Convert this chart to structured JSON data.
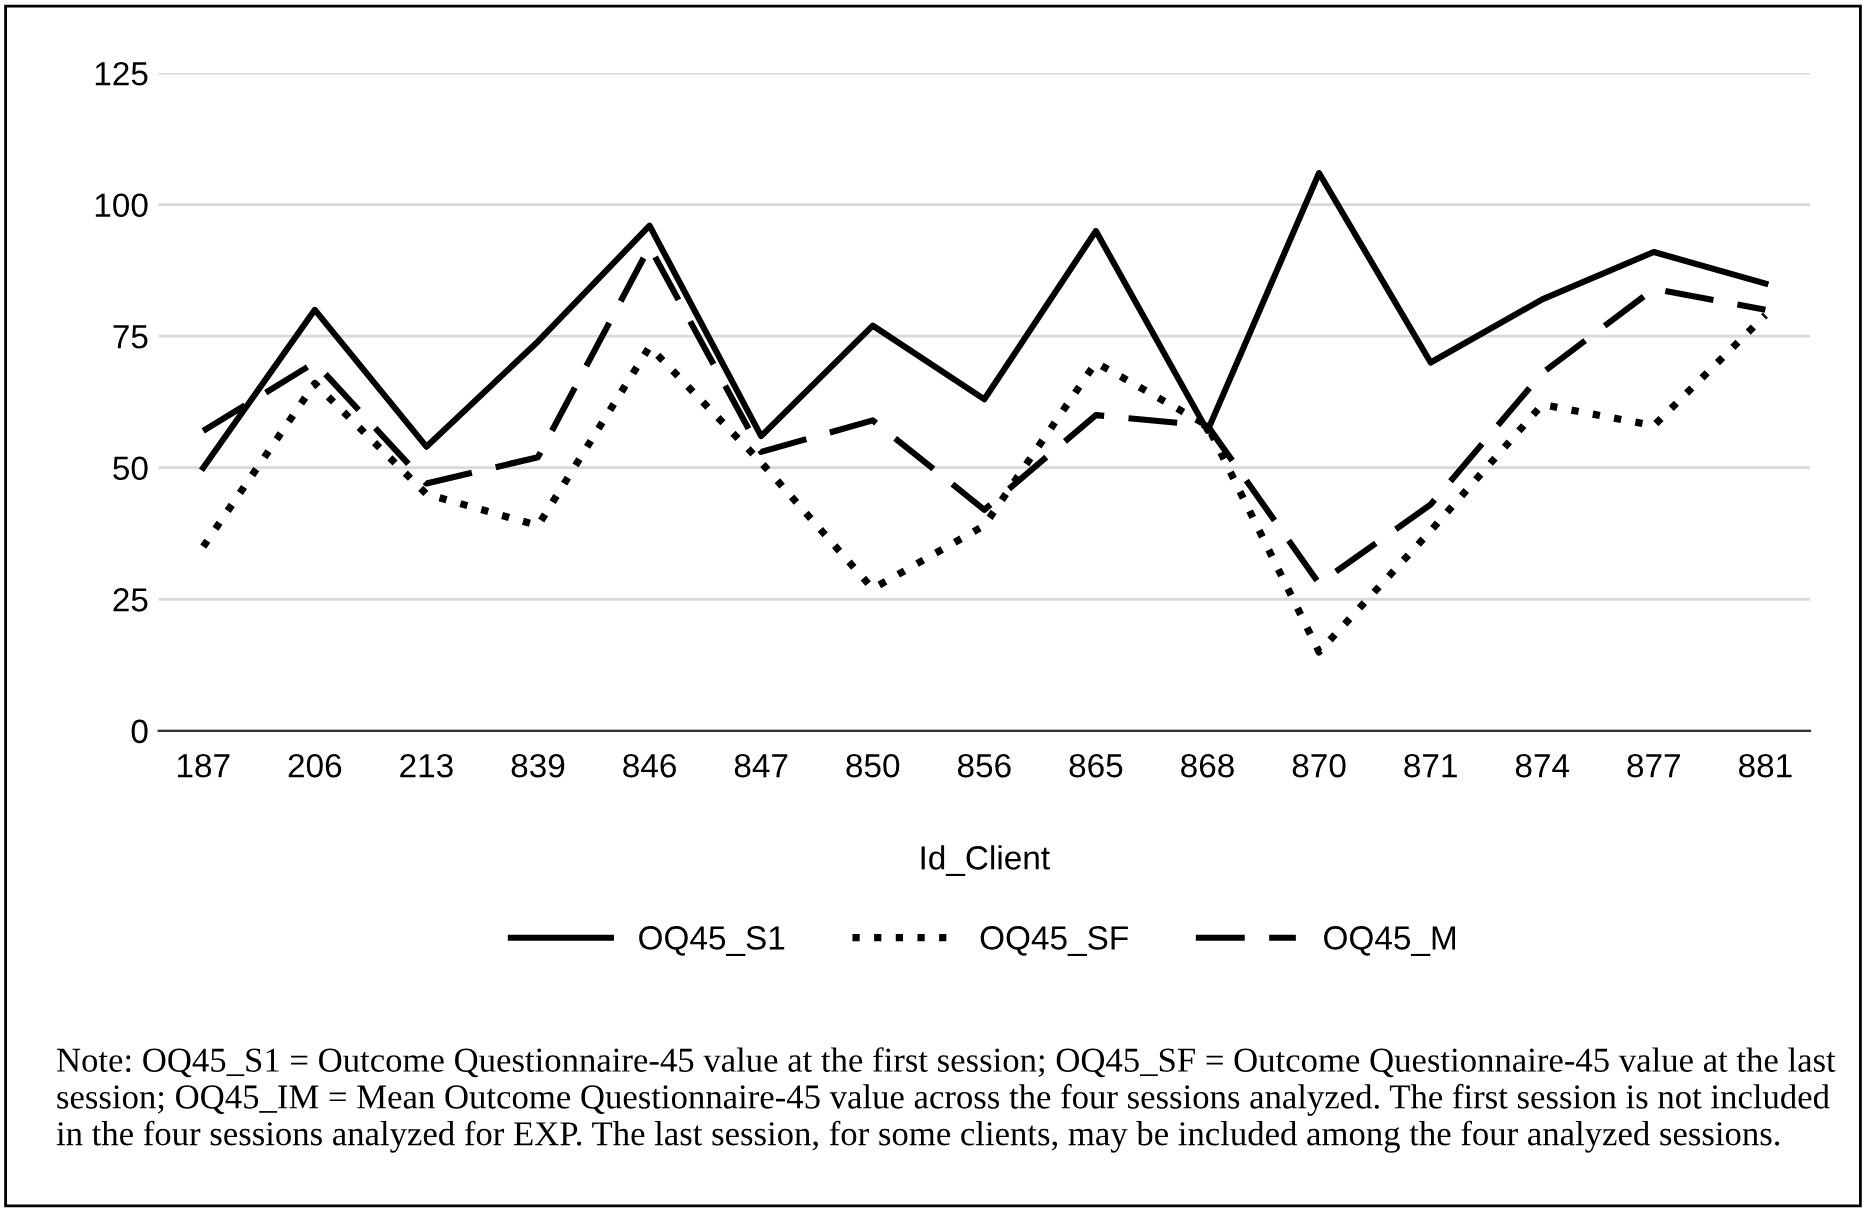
{
  "chart_data": {
    "type": "line",
    "xlabel": "Id_Client",
    "categories": [
      "187",
      "206",
      "213",
      "839",
      "846",
      "847",
      "850",
      "856",
      "865",
      "868",
      "870",
      "871",
      "874",
      "877",
      "881"
    ],
    "series": [
      {
        "name": "OQ45_S1",
        "color": "#000000",
        "line_style": "solid",
        "values": [
          50,
          80,
          54,
          74,
          96,
          56,
          77,
          63,
          95,
          57,
          106,
          70,
          82,
          91,
          85
        ]
      },
      {
        "name": "OQ45_SF",
        "color": "#000000",
        "line_style": "dotted",
        "values": [
          35,
          66,
          45,
          39,
          73,
          51,
          27,
          39,
          70,
          58,
          15,
          38,
          62,
          58,
          79
        ]
      },
      {
        "name": "OQ45_M",
        "color": "#000000",
        "line_style": "dashed",
        "values": [
          57,
          70,
          47,
          52,
          92,
          53,
          59,
          42,
          60,
          58,
          28,
          43,
          68,
          84,
          80
        ]
      }
    ],
    "ylim": [
      0,
      125
    ],
    "yticks": [
      0,
      25,
      50,
      75,
      100,
      125
    ],
    "grid": "y",
    "legend": "bottom",
    "marker": "none",
    "annotations": [
      "Note: OQ45_S1 = Outcome Questionnaire-45 value at the first session; OQ45_SF = Outcome Questionnaire-45 value at the last session; OQ45_IM = Mean Outcome Questionnaire-45 value across the four sessions analyzed. The first session is not included in the four sessions analyzed for EXP. The last session, for some clients, may be included among the four analyzed sessions."
    ]
  }
}
